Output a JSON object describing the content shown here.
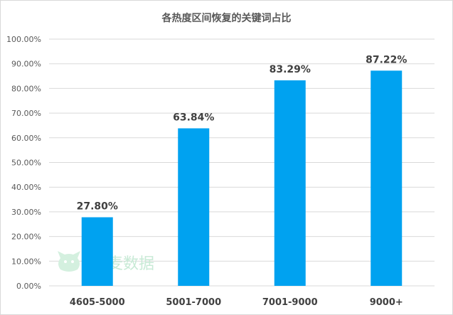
{
  "chart_data": {
    "type": "bar",
    "title": "各热度区间恢复的关键词占比",
    "categories": [
      "4605-5000",
      "5001-7000",
      "7001-9000",
      "9000+"
    ],
    "values": [
      27.8,
      63.84,
      83.29,
      87.22
    ],
    "data_labels": [
      "27.80%",
      "63.84%",
      "83.29%",
      "87.22%"
    ],
    "y_ticks": [
      "0.00%",
      "10.00%",
      "20.00%",
      "30.00%",
      "40.00%",
      "50.00%",
      "60.00%",
      "70.00%",
      "80.00%",
      "90.00%",
      "100.00%"
    ],
    "ylim": [
      0,
      100
    ],
    "grid": true,
    "legend": "none",
    "bar_color": "#00a2f0",
    "grid_color": "#d9d9d9"
  },
  "watermark": {
    "text": "麦数据",
    "icon": "cat-logo-icon"
  }
}
